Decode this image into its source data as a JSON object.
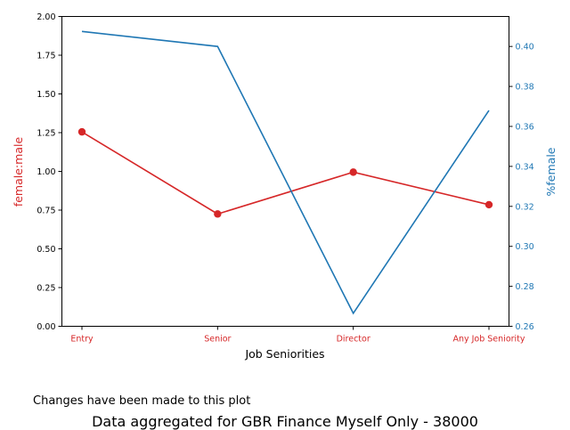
{
  "chart_data": {
    "type": "line",
    "categories": [
      "Entry",
      "Senior",
      "Director",
      "Any Job Seniority"
    ],
    "xlabel": "Job Seniorities",
    "series": [
      {
        "name": "female:male",
        "axis": "left",
        "color": "#d62728",
        "marker": "circle",
        "values": [
          1.255,
          0.725,
          0.995,
          0.785
        ]
      },
      {
        "name": "%female",
        "axis": "right",
        "color": "#1f77b4",
        "marker": "none",
        "values": [
          0.4075,
          0.4,
          0.2665,
          0.368
        ]
      }
    ],
    "y_left": {
      "label": "female:male",
      "color": "#d62728",
      "ylim": [
        0,
        2.0
      ],
      "ticks": [
        "0.00",
        "0.25",
        "0.50",
        "0.75",
        "1.00",
        "1.25",
        "1.50",
        "1.75",
        "2.00"
      ]
    },
    "y_right": {
      "label": "%female",
      "color": "#1f77b4",
      "ylim": [
        0.26,
        0.415
      ],
      "ticks": [
        "0.26",
        "0.28",
        "0.30",
        "0.32",
        "0.34",
        "0.36",
        "0.38",
        "0.40"
      ]
    },
    "x_tick_color": "#d62728",
    "grid": false
  },
  "notes": {
    "changes": "Changes have been made to this plot",
    "caption": "Data aggregated for GBR Finance Myself Only - 38000"
  }
}
